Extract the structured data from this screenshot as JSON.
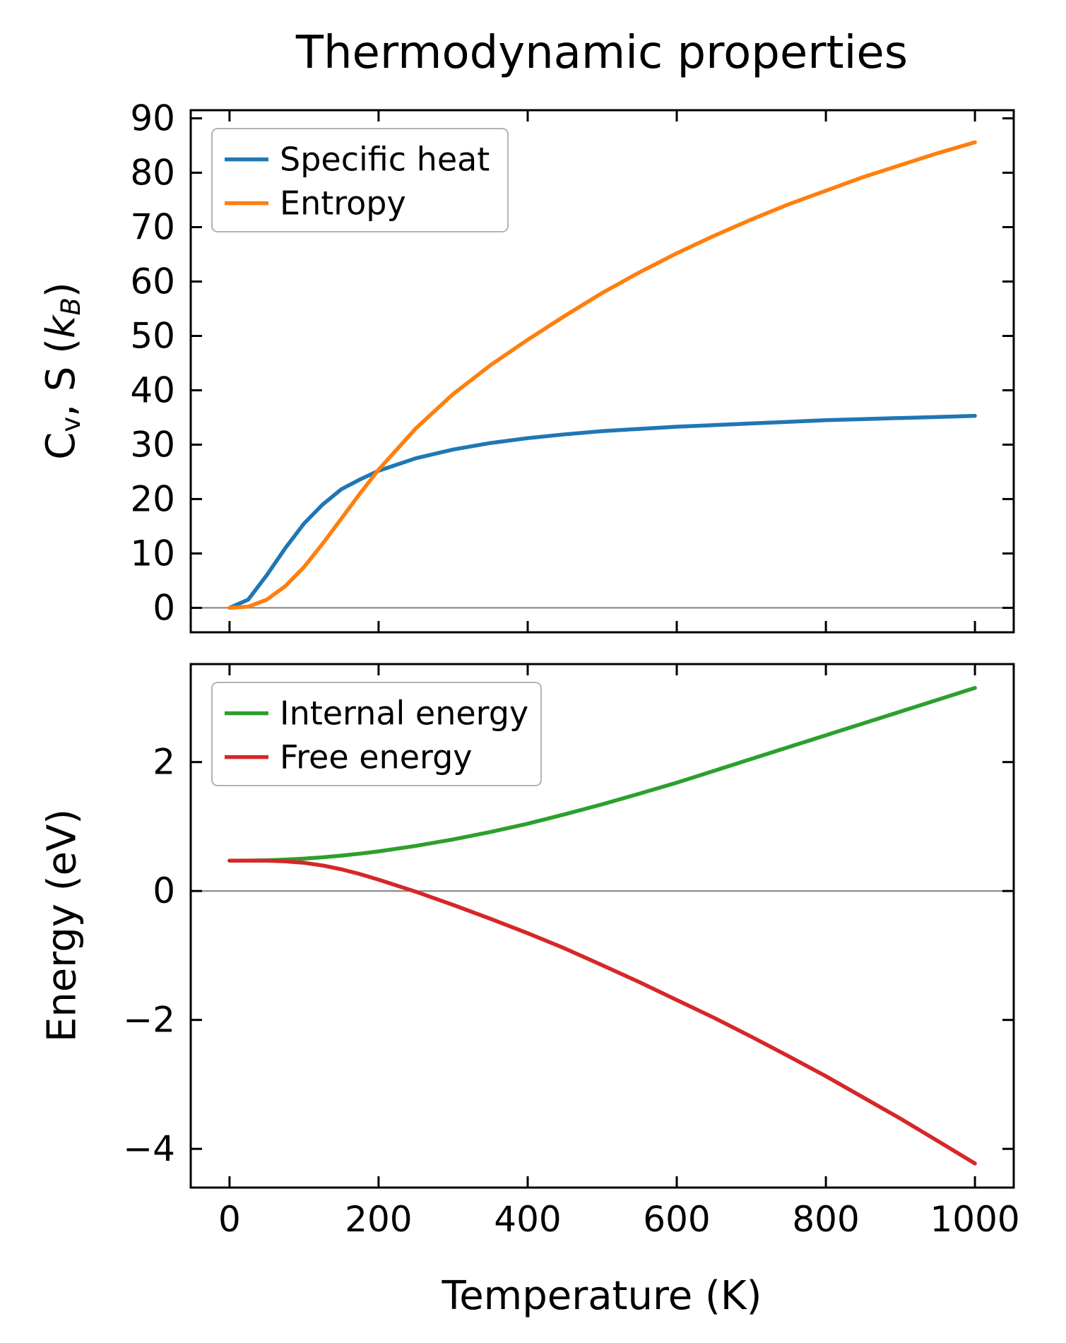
{
  "figure": {
    "title": "Thermodynamic properties",
    "background": "#ffffff"
  },
  "style": {
    "axis_color": "#000000",
    "zero_line_color": "#808080",
    "legend_border": "#b3b3b3",
    "line_width": 5.5,
    "spine_width": 3,
    "tick_length": 16,
    "tick_font_size": 50,
    "legend_font_size": 46
  },
  "chart_data": [
    {
      "type": "line",
      "name": "thermo-upper",
      "title": "",
      "xlabel": "",
      "ylabel": "Cv, S (kB)",
      "ylabel_segments": [
        {
          "t": "C"
        },
        {
          "t": "v",
          "sub": true
        },
        {
          "t": ", S ("
        },
        {
          "t": "k",
          "i": true
        },
        {
          "t": "B",
          "sub": true,
          "i": true
        },
        {
          "t": ")"
        }
      ],
      "xlim": [
        -52,
        1052
      ],
      "ylim": [
        -4.5,
        91.5
      ],
      "xticks": [
        0,
        200,
        400,
        600,
        800,
        1000
      ],
      "yticks": [
        0,
        10,
        20,
        30,
        40,
        50,
        60,
        70,
        80,
        90
      ],
      "show_x_tick_labels": false,
      "zero_line": true,
      "grid": false,
      "legend_position": "upper left",
      "x": [
        0,
        25,
        50,
        75,
        100,
        125,
        150,
        175,
        200,
        250,
        300,
        350,
        400,
        450,
        500,
        550,
        600,
        650,
        700,
        750,
        800,
        850,
        900,
        950,
        1000
      ],
      "series": [
        {
          "name": "Specific heat",
          "color": "#1f77b4",
          "values": [
            0,
            1.5,
            6.0,
            11.0,
            15.5,
            19.0,
            21.8,
            23.6,
            25.2,
            27.5,
            29.1,
            30.3,
            31.2,
            31.9,
            32.5,
            32.9,
            33.3,
            33.6,
            33.9,
            34.2,
            34.5,
            34.7,
            34.9,
            35.1,
            35.3
          ]
        },
        {
          "name": "Entropy",
          "color": "#ff7f0e",
          "values": [
            0,
            0.2,
            1.5,
            4.0,
            7.5,
            11.8,
            16.4,
            21.0,
            25.4,
            33.0,
            39.3,
            44.6,
            49.3,
            53.7,
            57.9,
            61.7,
            65.2,
            68.4,
            71.4,
            74.2,
            76.7,
            79.2,
            81.4,
            83.6,
            85.6
          ]
        }
      ]
    },
    {
      "type": "line",
      "name": "thermo-lower",
      "title": "",
      "xlabel": "Temperature (K)",
      "ylabel": "Energy (eV)",
      "ylabel_segments": [
        {
          "t": "Energy (eV)"
        }
      ],
      "xlim": [
        -52,
        1052
      ],
      "ylim": [
        -4.6,
        3.52
      ],
      "xticks": [
        0,
        200,
        400,
        600,
        800,
        1000
      ],
      "yticks": [
        -4,
        -2,
        0,
        2
      ],
      "show_x_tick_labels": true,
      "zero_line": true,
      "grid": false,
      "legend_position": "upper left",
      "x": [
        0,
        25,
        50,
        75,
        100,
        125,
        150,
        175,
        200,
        250,
        300,
        350,
        400,
        450,
        500,
        550,
        600,
        650,
        700,
        750,
        800,
        850,
        900,
        950,
        1000
      ],
      "series": [
        {
          "name": "Internal energy",
          "color": "#2ca02c",
          "values": [
            0.47,
            0.472,
            0.477,
            0.487,
            0.502,
            0.523,
            0.549,
            0.58,
            0.615,
            0.7,
            0.8,
            0.915,
            1.045,
            1.19,
            1.345,
            1.51,
            1.68,
            1.864,
            2.048,
            2.232,
            2.415,
            2.6,
            2.783,
            2.967,
            3.15
          ]
        },
        {
          "name": "Free energy",
          "color": "#d62728",
          "values": [
            0.47,
            0.47,
            0.47,
            0.461,
            0.437,
            0.396,
            0.337,
            0.263,
            0.177,
            -0.011,
            -0.216,
            -0.43,
            -0.654,
            -0.892,
            -1.15,
            -1.414,
            -1.691,
            -1.967,
            -2.259,
            -2.563,
            -2.872,
            -3.201,
            -3.53,
            -3.877,
            -4.226
          ]
        }
      ]
    }
  ]
}
